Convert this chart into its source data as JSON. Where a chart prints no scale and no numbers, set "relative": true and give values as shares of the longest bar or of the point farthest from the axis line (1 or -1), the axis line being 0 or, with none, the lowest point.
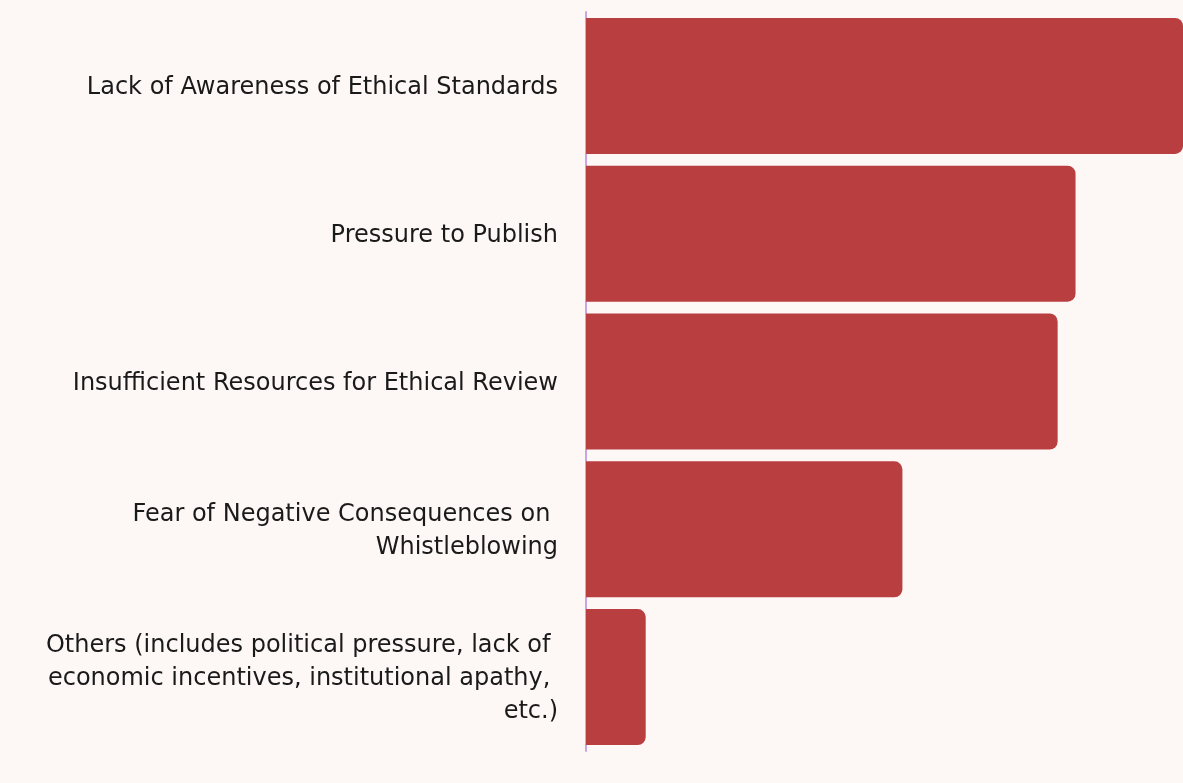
{
  "chart_data": {
    "type": "bar",
    "orientation": "horizontal",
    "relative": true,
    "categories": [
      "Lack of Awareness of Ethical Standards",
      "Pressure to Publish",
      "Insufficient Resources for Ethical Review",
      "Fear of Negative Consequences on Whistleblowing",
      "Others (includes political pressure, lack of economic incentives, institutional apathy, etc.)"
    ],
    "values": [
      1,
      0.82,
      0.79,
      0.53,
      0.1
    ],
    "color": "#b93e40"
  }
}
